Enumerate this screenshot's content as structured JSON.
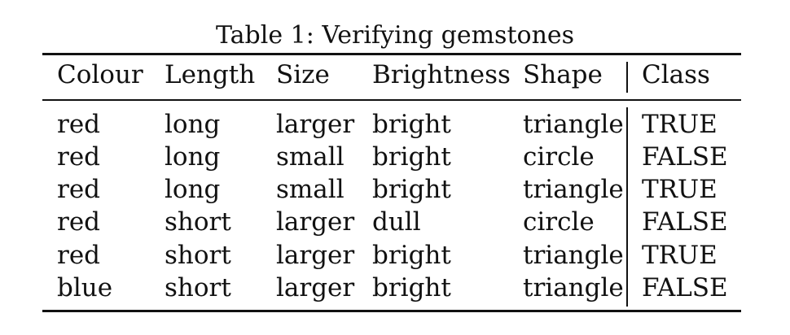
{
  "caption": "Table 1:  Verifying gemstones",
  "table": {
    "columns": [
      "Colour",
      "Length",
      "Size",
      "Brightness",
      "Shape",
      "Class"
    ],
    "rows": [
      [
        "red",
        "long",
        "larger",
        "bright",
        "triangle",
        "TRUE"
      ],
      [
        "red",
        "long",
        "small",
        "bright",
        "circle",
        "FALSE"
      ],
      [
        "red",
        "long",
        "small",
        "bright",
        "triangle",
        "TRUE"
      ],
      [
        "red",
        "short",
        "larger",
        "dull",
        "circle",
        "FALSE"
      ],
      [
        "red",
        "short",
        "larger",
        "bright",
        "triangle",
        "TRUE"
      ],
      [
        "blue",
        "short",
        "larger",
        "bright",
        "triangle",
        "FALSE"
      ]
    ]
  }
}
